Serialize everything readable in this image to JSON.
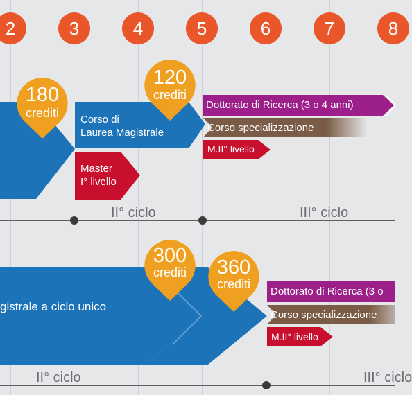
{
  "years": [
    "2",
    "3",
    "4",
    "5",
    "6",
    "7",
    "8"
  ],
  "colors": {
    "orange": "#e8562a",
    "pin": "#f0a020",
    "blue": "#1c73b8",
    "purple": "#9c1f8a",
    "brown": "#7a5b45",
    "red": "#c8102e",
    "axis": "#5e6062",
    "background": "#e6e7e9"
  },
  "top": {
    "pin_180": {
      "number": "180",
      "unit": "crediti"
    },
    "pin_120": {
      "number": "120",
      "unit": "crediti"
    },
    "laurea_magistrale": {
      "line1": "Corso di",
      "line2": "Laurea Magistrale"
    },
    "master": {
      "line1": "Master",
      "line2": "I° livello"
    },
    "dottorato": "Dottorato di Ricerca (3 o 4 anni)",
    "specializzazione": "Corso specializzazione",
    "master2": "M.II° livello",
    "cycle2": "II° ciclo",
    "cycle3": "III° ciclo"
  },
  "bottom": {
    "pin_300": {
      "number": "300",
      "unit": "crediti"
    },
    "pin_360": {
      "number": "360",
      "unit": "crediti"
    },
    "ciclo_unico": "gistrale a ciclo unico",
    "dottorato": "Dottorato di Ricerca (3 o",
    "specializzazione": "Corso specializzazione",
    "master2": "M.II° livello",
    "cycle2": "II° ciclo",
    "cycle3": "III° ciclo"
  }
}
